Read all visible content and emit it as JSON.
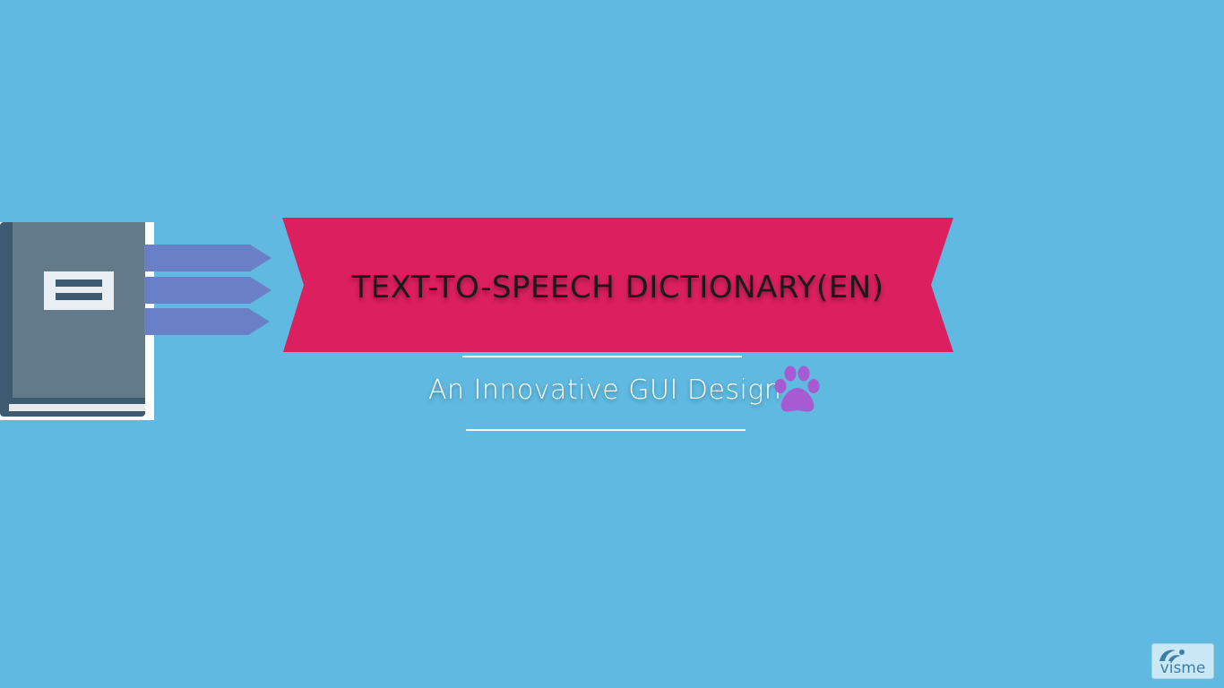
{
  "title": "TEXT-TO-SPEECH DICTIONARY(EN)",
  "subtitle": "An Innovative GUI Design",
  "watermark": {
    "label": "visme"
  },
  "icons": {
    "book": "book-icon",
    "arrows": "arrow-tab-icon",
    "paw": "paw-icon",
    "watermark_logo": "visme-logo-icon"
  },
  "colors": {
    "background": "#5fb9e0",
    "ribbon": "#dc1f5e",
    "book_cover": "#627a89",
    "book_spine": "#3e5a70",
    "arrow": "#6a80c6",
    "paw": "#a85bd0",
    "text_dark": "#1a1a1a",
    "text_light": "#ffffff"
  }
}
